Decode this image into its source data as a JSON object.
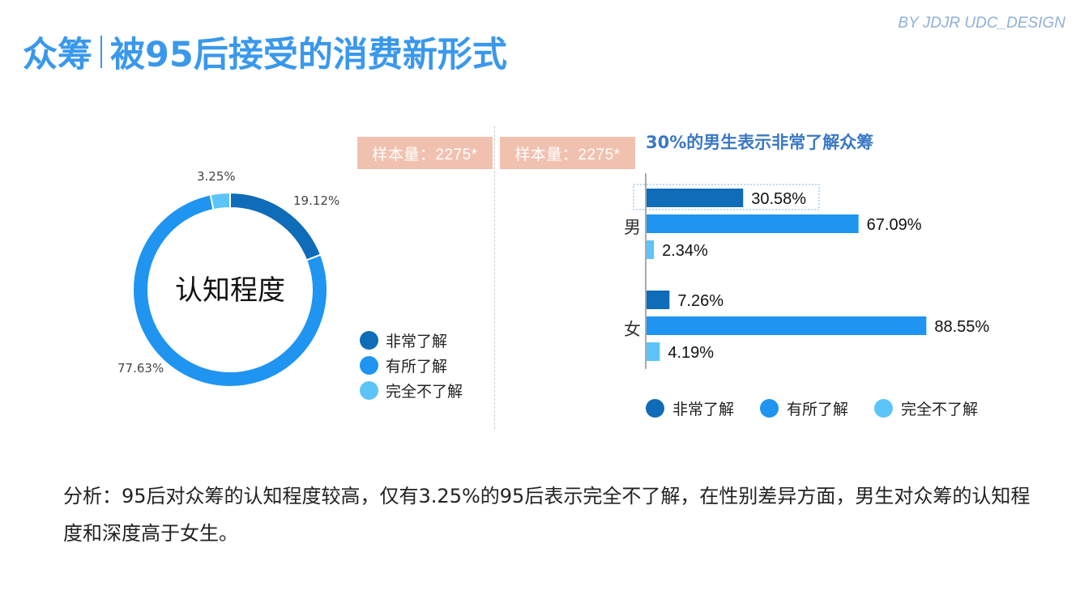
{
  "brand": "BY JDJR UDC_DESIGN",
  "title": {
    "part1": "众筹",
    "part2": "被95后接受的消费新形式"
  },
  "badges": [
    "样本量：2275*",
    "样本量：2275*"
  ],
  "colors": {
    "non_chang": "#0e6cb8",
    "you_suo": "#1f94f0",
    "wan_quan": "#5cc4f9",
    "accent": "#3a98ec",
    "badge": "#f1c1b0"
  },
  "chart_data": [
    {
      "type": "pie",
      "title": "认知程度",
      "slices": [
        {
          "label": "非常了解",
          "value": 19.12,
          "value_label": "19.12%",
          "color": "#0e6cb8"
        },
        {
          "label": "有所了解",
          "value": 77.63,
          "value_label": "77.63%",
          "color": "#1f94f0"
        },
        {
          "label": "完全不了解",
          "value": 3.25,
          "value_label": "3.25%",
          "color": "#5cc4f9"
        }
      ],
      "legend": [
        "非常了解",
        "有所了解",
        "完全不了解"
      ],
      "legend_position": "bottom-right"
    },
    {
      "type": "bar",
      "orientation": "horizontal",
      "title": "30%的男生表示非常了解众筹",
      "categories": [
        "男",
        "女"
      ],
      "series": [
        {
          "name": "非常了解",
          "values": [
            30.58,
            7.26
          ],
          "value_labels": [
            "30.58%",
            "7.26%"
          ],
          "color": "#0e6cb8"
        },
        {
          "name": "有所了解",
          "values": [
            67.09,
            88.55
          ],
          "value_labels": [
            "67.09%",
            "88.55%"
          ],
          "color": "#1f94f0"
        },
        {
          "name": "完全不了解",
          "values": [
            2.34,
            4.19
          ],
          "value_labels": [
            "2.34%",
            "4.19%"
          ],
          "color": "#5cc4f9"
        }
      ],
      "xlim": [
        0,
        100
      ],
      "legend_position": "bottom"
    }
  ],
  "analysis": "分析：95后对众筹的认知程度较高，仅有3.25%的95后表示完全不了解，在性别差异方面，男生对众筹的认知程度和深度高于女生。"
}
